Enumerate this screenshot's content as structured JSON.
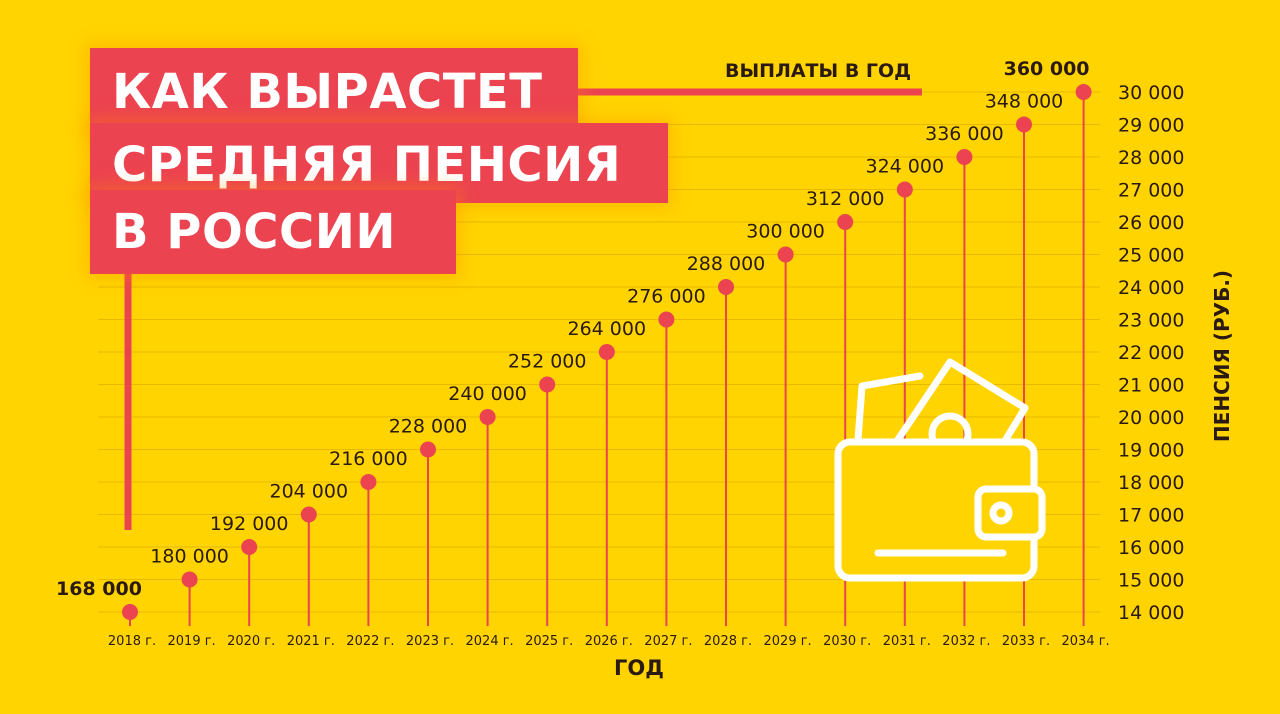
{
  "title": {
    "lines": [
      "КАК ВЫРАСТЕТ",
      "СРЕДНЯЯ ПЕНСИЯ",
      "В РОССИИ"
    ]
  },
  "annual_label": "ВЫПЛАТЫ В ГОД",
  "colors": {
    "background": "#ffd400",
    "accent": "#ec4350",
    "text": "#2a1a12",
    "icon": "#ffffff"
  },
  "icons": [
    "wallet-icon"
  ],
  "chart_data": {
    "type": "scatter",
    "x": [
      "2018 г.",
      "2019 г.",
      "2020 г.",
      "2021 г.",
      "2022 г.",
      "2023 г.",
      "2024 г.",
      "2025 г.",
      "2026 г.",
      "2027 г.",
      "2028 г.",
      "2029 г.",
      "2030 г.",
      "2031 г.",
      "2032 г.",
      "2033 г.",
      "2034 г."
    ],
    "values": [
      14000,
      15000,
      16000,
      17000,
      18000,
      19000,
      20000,
      21000,
      22000,
      23000,
      24000,
      25000,
      26000,
      27000,
      28000,
      29000,
      30000
    ],
    "annual_labels": [
      "168 000",
      "180 000",
      "192 000",
      "204 000",
      "216 000",
      "228 000",
      "240 000",
      "252 000",
      "264 000",
      "276 000",
      "288 000",
      "300 000",
      "312 000",
      "324 000",
      "336 000",
      "348 000",
      "360 000"
    ],
    "ytick_labels": [
      "14 000",
      "15 000",
      "16 000",
      "17 000",
      "18 000",
      "19 000",
      "20 000",
      "21 000",
      "22 000",
      "23 000",
      "24 000",
      "25 000",
      "26 000",
      "27 000",
      "28 000",
      "29 000",
      "30 000"
    ],
    "yticks": [
      14000,
      15000,
      16000,
      17000,
      18000,
      19000,
      20000,
      21000,
      22000,
      23000,
      24000,
      25000,
      26000,
      27000,
      28000,
      29000,
      30000
    ],
    "ylim": [
      14000,
      30000
    ],
    "xlabel": "ГОД",
    "ylabel": "ПЕНСИЯ (РУБ.)",
    "grid": true,
    "y_axis_side": "right"
  }
}
